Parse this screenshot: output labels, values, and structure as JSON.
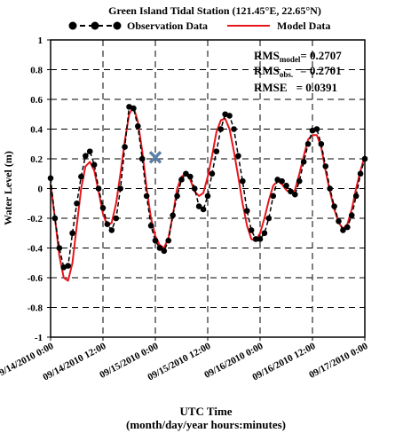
{
  "chart_data": {
    "type": "line",
    "title": "Green Island Tidal Station (121.45°E, 22.65°N)",
    "xlabel_line1": "UTC Time",
    "xlabel_line2": "(month/day/year hours:minutes)",
    "ylabel": "Water Level (m)",
    "x_ticks": [
      "09/14/2010 0:00",
      "09/14/2010 12:00",
      "09/15/2010 0:00",
      "09/15/2010 12:00",
      "09/16/2010 0:00",
      "09/16/2010 12:00",
      "09/17/2010 0:00"
    ],
    "x_range_hours": [
      0,
      72
    ],
    "ylim": [
      -1,
      1
    ],
    "y_ticks": [
      -1,
      -0.8,
      -0.6,
      -0.4,
      -0.2,
      0,
      0.2,
      0.4,
      0.6,
      0.8,
      1
    ],
    "y_tick_labels": [
      "-1",
      "-0.8",
      "-0.6",
      "-0.4",
      "-0.2",
      "0",
      "0.2",
      "0.4",
      "0.6",
      "0.8",
      "1"
    ],
    "grid": true,
    "legend": {
      "placement": "top",
      "observation_label": "Observation Data",
      "model_label": "Model Data"
    },
    "stats": {
      "rms_model_label": "RMS",
      "rms_model_sub": "model",
      "rms_model_value": "= 0.2707",
      "rms_obs_label": "RMS",
      "rms_obs_sub": "obs.",
      "rms_obs_value": "= 0.2701",
      "rmse_label": "RMSE",
      "rmse_value": "= 0.0391"
    },
    "marker_x": {
      "x_hours": 24,
      "y": 0.21,
      "color": "#5a7fa8"
    },
    "series": [
      {
        "name": "Observation Data",
        "style": "dashed-with-dots",
        "color": "#000000",
        "x_hours": [
          0,
          1,
          2,
          3,
          4,
          5,
          6,
          7,
          8,
          9,
          10,
          11,
          12,
          13,
          14,
          15,
          16,
          17,
          18,
          19,
          20,
          21,
          22,
          23,
          24,
          25,
          26,
          27,
          28,
          29,
          30,
          31,
          32,
          33,
          34,
          35,
          36,
          37,
          38,
          39,
          40,
          41,
          42,
          43,
          44,
          45,
          46,
          47,
          48,
          49,
          50,
          51,
          52,
          53,
          54,
          55,
          56,
          57,
          58,
          59,
          60,
          61,
          62,
          63,
          64,
          65,
          66,
          67,
          68,
          69,
          70,
          71,
          72
        ],
        "values": [
          0.07,
          -0.2,
          -0.4,
          -0.53,
          -0.52,
          -0.3,
          -0.1,
          0.08,
          0.22,
          0.25,
          0.16,
          0.0,
          -0.13,
          -0.24,
          -0.28,
          -0.2,
          0.0,
          0.28,
          0.55,
          0.54,
          0.42,
          0.2,
          -0.05,
          -0.25,
          -0.35,
          -0.4,
          -0.42,
          -0.35,
          -0.18,
          -0.05,
          0.06,
          0.1,
          0.08,
          0.0,
          -0.12,
          -0.14,
          -0.05,
          0.1,
          0.25,
          0.4,
          0.5,
          0.49,
          0.4,
          0.22,
          0.05,
          -0.15,
          -0.28,
          -0.34,
          -0.34,
          -0.3,
          -0.2,
          -0.05,
          0.06,
          0.05,
          0.02,
          -0.02,
          -0.04,
          0.05,
          0.18,
          0.3,
          0.39,
          0.4,
          0.3,
          0.15,
          0.0,
          -0.12,
          -0.22,
          -0.28,
          -0.26,
          -0.18,
          -0.05,
          0.1,
          0.2
        ]
      },
      {
        "name": "Model Data",
        "style": "solid",
        "color": "#e8151b",
        "x_hours": [
          0,
          1,
          2,
          3,
          4,
          5,
          6,
          7,
          8,
          9,
          10,
          11,
          12,
          13,
          14,
          15,
          16,
          17,
          18,
          19,
          20,
          21,
          22,
          23,
          24,
          25,
          26,
          27,
          28,
          29,
          30,
          31,
          32,
          33,
          34,
          35,
          36,
          37,
          38,
          39,
          40,
          41,
          42,
          43,
          44,
          45,
          46,
          47,
          48,
          49,
          50,
          51,
          52,
          53,
          54,
          55,
          56,
          57,
          58,
          59,
          60,
          61,
          62,
          63,
          64,
          65,
          66,
          67,
          68,
          69,
          70,
          71,
          72
        ],
        "values": [
          0.03,
          -0.2,
          -0.45,
          -0.6,
          -0.62,
          -0.5,
          -0.25,
          0.0,
          0.15,
          0.18,
          0.12,
          -0.02,
          -0.17,
          -0.25,
          -0.23,
          -0.1,
          0.1,
          0.32,
          0.5,
          0.55,
          0.45,
          0.25,
          0.0,
          -0.2,
          -0.32,
          -0.38,
          -0.4,
          -0.33,
          -0.18,
          0.0,
          0.08,
          0.1,
          0.06,
          -0.02,
          -0.05,
          -0.03,
          0.08,
          0.22,
          0.38,
          0.46,
          0.47,
          0.4,
          0.25,
          0.08,
          -0.1,
          -0.25,
          -0.34,
          -0.35,
          -0.3,
          -0.2,
          -0.08,
          0.02,
          0.05,
          0.03,
          -0.01,
          -0.03,
          -0.01,
          0.1,
          0.22,
          0.33,
          0.36,
          0.36,
          0.28,
          0.12,
          -0.02,
          -0.14,
          -0.23,
          -0.27,
          -0.24,
          -0.14,
          0.0,
          0.12,
          0.22
        ]
      }
    ]
  }
}
